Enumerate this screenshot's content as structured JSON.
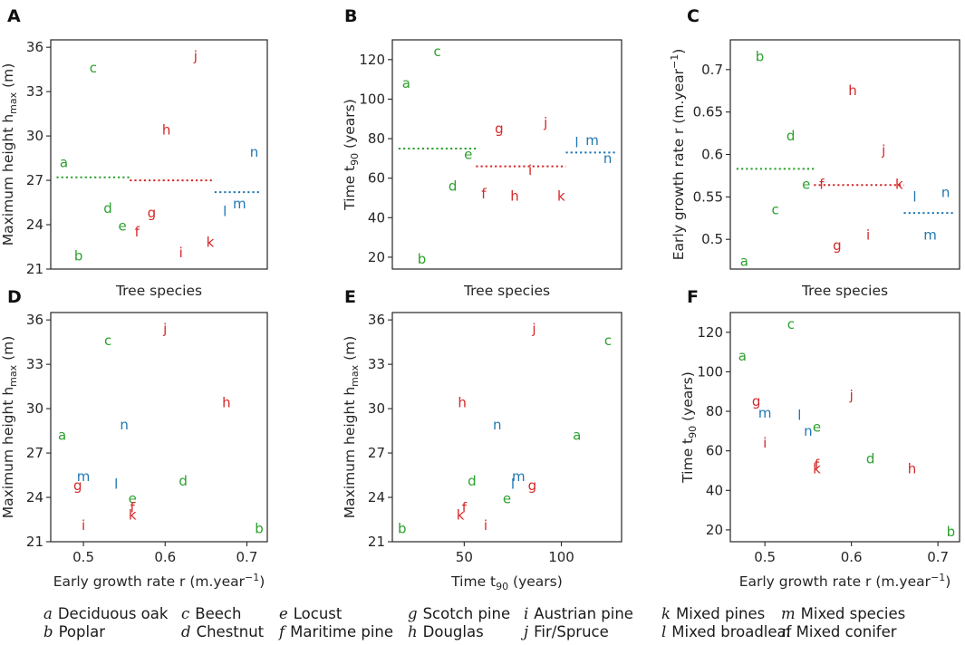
{
  "colors": {
    "green": "#2ca02c",
    "red": "#d62728",
    "blue": "#1f77b4",
    "axis": "#262626"
  },
  "group_colors": {
    "a": "green",
    "b": "green",
    "c": "green",
    "d": "green",
    "e": "green",
    "f": "red",
    "g": "red",
    "h": "red",
    "i": "red",
    "j": "red",
    "k": "red",
    "l": "blue",
    "m": "blue",
    "n": "blue"
  },
  "legend": [
    {
      "letter": "a",
      "name": "Deciduous oak"
    },
    {
      "letter": "b",
      "name": "Poplar"
    },
    {
      "letter": "c",
      "name": "Beech"
    },
    {
      "letter": "d",
      "name": "Chestnut"
    },
    {
      "letter": "e",
      "name": "Locust"
    },
    {
      "letter": "f",
      "name": "Maritime pine"
    },
    {
      "letter": "g",
      "name": "Scotch pine"
    },
    {
      "letter": "h",
      "name": "Douglas"
    },
    {
      "letter": "i",
      "name": "Austrian pine"
    },
    {
      "letter": "j",
      "name": "Fir/Spruce"
    },
    {
      "letter": "k",
      "name": "Mixed pines"
    },
    {
      "letter": "l",
      "name": "Mixed broadleaf"
    },
    {
      "letter": "m",
      "name": "Mixed species"
    },
    {
      "letter": "n",
      "name": "Mixed conifer"
    }
  ],
  "chart_data": [
    {
      "panel": "A",
      "type": "scatter",
      "xlabel": "Tree species",
      "ylabel": "Maximum height h_max (m)",
      "ylim": [
        21,
        36.5
      ],
      "yticks": [
        21,
        24,
        27,
        30,
        33,
        36
      ],
      "xticks": [],
      "points": [
        {
          "label": "a",
          "x": 1,
          "y": 28.2
        },
        {
          "label": "b",
          "x": 2,
          "y": 21.9
        },
        {
          "label": "c",
          "x": 3,
          "y": 34.6
        },
        {
          "label": "d",
          "x": 4,
          "y": 25.1
        },
        {
          "label": "e",
          "x": 5,
          "y": 23.9
        },
        {
          "label": "f",
          "x": 6,
          "y": 23.5
        },
        {
          "label": "g",
          "x": 7,
          "y": 24.8
        },
        {
          "label": "h",
          "x": 8,
          "y": 30.4
        },
        {
          "label": "i",
          "x": 9,
          "y": 22.1
        },
        {
          "label": "j",
          "x": 10,
          "y": 35.4
        },
        {
          "label": "k",
          "x": 11,
          "y": 22.8
        },
        {
          "label": "l",
          "x": 12,
          "y": 24.9
        },
        {
          "label": "m",
          "x": 13,
          "y": 25.4
        },
        {
          "label": "n",
          "x": 14,
          "y": 28.9
        }
      ],
      "group_means": [
        {
          "group": "green",
          "y": 27.2,
          "x_from": 0.5,
          "x_to": 5.5
        },
        {
          "group": "red",
          "y": 27.0,
          "x_from": 5.5,
          "x_to": 11.3
        },
        {
          "group": "blue",
          "y": 26.2,
          "x_from": 11.3,
          "x_to": 14.5
        }
      ]
    },
    {
      "panel": "B",
      "type": "scatter",
      "xlabel": "Tree species",
      "ylabel": "Time t90 (years)",
      "ylim": [
        14,
        130
      ],
      "yticks": [
        20,
        40,
        60,
        80,
        100,
        120
      ],
      "xticks": [],
      "points": [
        {
          "label": "a",
          "x": 1,
          "y": 108
        },
        {
          "label": "b",
          "x": 2,
          "y": 19
        },
        {
          "label": "c",
          "x": 3,
          "y": 124
        },
        {
          "label": "d",
          "x": 4,
          "y": 56
        },
        {
          "label": "e",
          "x": 5,
          "y": 72
        },
        {
          "label": "f",
          "x": 6,
          "y": 52
        },
        {
          "label": "g",
          "x": 7,
          "y": 85
        },
        {
          "label": "h",
          "x": 8,
          "y": 51
        },
        {
          "label": "i",
          "x": 9,
          "y": 64
        },
        {
          "label": "j",
          "x": 10,
          "y": 88
        },
        {
          "label": "k",
          "x": 11,
          "y": 51
        },
        {
          "label": "l",
          "x": 12,
          "y": 78
        },
        {
          "label": "m",
          "x": 13,
          "y": 79
        },
        {
          "label": "n",
          "x": 14,
          "y": 70
        }
      ],
      "group_means": [
        {
          "group": "green",
          "y": 75,
          "x_from": 0.5,
          "x_to": 5.5
        },
        {
          "group": "red",
          "y": 66,
          "x_from": 5.5,
          "x_to": 11.3
        },
        {
          "group": "blue",
          "y": 73,
          "x_from": 11.3,
          "x_to": 14.5
        }
      ]
    },
    {
      "panel": "C",
      "type": "scatter",
      "xlabel": "Tree species",
      "ylabel": "Early growth rate r (m.year^-1)",
      "ylim": [
        0.465,
        0.735
      ],
      "yticks": [
        0.5,
        0.55,
        0.6,
        0.65,
        0.7
      ],
      "xticks": [],
      "points": [
        {
          "label": "a",
          "x": 1,
          "y": 0.474
        },
        {
          "label": "b",
          "x": 2,
          "y": 0.715
        },
        {
          "label": "c",
          "x": 3,
          "y": 0.535
        },
        {
          "label": "d",
          "x": 4,
          "y": 0.622
        },
        {
          "label": "e",
          "x": 5,
          "y": 0.565
        },
        {
          "label": "f",
          "x": 6,
          "y": 0.565
        },
        {
          "label": "g",
          "x": 7,
          "y": 0.493
        },
        {
          "label": "h",
          "x": 8,
          "y": 0.675
        },
        {
          "label": "i",
          "x": 9,
          "y": 0.505
        },
        {
          "label": "j",
          "x": 10,
          "y": 0.605
        },
        {
          "label": "k",
          "x": 11,
          "y": 0.565
        },
        {
          "label": "l",
          "x": 12,
          "y": 0.55
        },
        {
          "label": "m",
          "x": 13,
          "y": 0.505
        },
        {
          "label": "n",
          "x": 14,
          "y": 0.555
        }
      ],
      "group_means": [
        {
          "group": "green",
          "y": 0.583,
          "x_from": 0.5,
          "x_to": 5.5
        },
        {
          "group": "red",
          "y": 0.564,
          "x_from": 5.5,
          "x_to": 11.3
        },
        {
          "group": "blue",
          "y": 0.531,
          "x_from": 11.3,
          "x_to": 14.5
        }
      ]
    },
    {
      "panel": "D",
      "type": "scatter",
      "xlabel": "Early growth rate r (m.year^-1)",
      "ylabel": "Maximum height h_max (m)",
      "xlim": [
        0.46,
        0.725
      ],
      "ylim": [
        21,
        36.5
      ],
      "xticks": [
        0.5,
        0.6,
        0.7
      ],
      "yticks": [
        21,
        24,
        27,
        30,
        33,
        36
      ],
      "points": [
        {
          "label": "a",
          "x": 0.474,
          "y": 28.2
        },
        {
          "label": "b",
          "x": 0.715,
          "y": 21.9
        },
        {
          "label": "c",
          "x": 0.53,
          "y": 34.6
        },
        {
          "label": "d",
          "x": 0.622,
          "y": 25.1
        },
        {
          "label": "e",
          "x": 0.56,
          "y": 23.9
        },
        {
          "label": "f",
          "x": 0.56,
          "y": 23.3
        },
        {
          "label": "g",
          "x": 0.493,
          "y": 24.8
        },
        {
          "label": "h",
          "x": 0.675,
          "y": 30.4
        },
        {
          "label": "i",
          "x": 0.5,
          "y": 22.1
        },
        {
          "label": "j",
          "x": 0.6,
          "y": 35.4
        },
        {
          "label": "k",
          "x": 0.56,
          "y": 22.8
        },
        {
          "label": "l",
          "x": 0.54,
          "y": 24.9
        },
        {
          "label": "m",
          "x": 0.5,
          "y": 25.4
        },
        {
          "label": "n",
          "x": 0.55,
          "y": 28.9
        }
      ]
    },
    {
      "panel": "E",
      "type": "scatter",
      "xlabel": "Time t90 (years)",
      "ylabel": "Maximum height h_max (m)",
      "xlim": [
        13,
        131
      ],
      "ylim": [
        21,
        36.5
      ],
      "xticks": [
        50,
        100
      ],
      "yticks": [
        21,
        24,
        27,
        30,
        33,
        36
      ],
      "points": [
        {
          "label": "a",
          "x": 108,
          "y": 28.2
        },
        {
          "label": "b",
          "x": 18,
          "y": 21.9
        },
        {
          "label": "c",
          "x": 124,
          "y": 34.6
        },
        {
          "label": "d",
          "x": 54,
          "y": 25.1
        },
        {
          "label": "e",
          "x": 72,
          "y": 23.9
        },
        {
          "label": "f",
          "x": 50,
          "y": 23.3
        },
        {
          "label": "g",
          "x": 85,
          "y": 24.8
        },
        {
          "label": "h",
          "x": 49,
          "y": 30.4
        },
        {
          "label": "i",
          "x": 61,
          "y": 22.1
        },
        {
          "label": "j",
          "x": 86,
          "y": 35.4
        },
        {
          "label": "k",
          "x": 48,
          "y": 22.8
        },
        {
          "label": "l",
          "x": 75,
          "y": 24.9
        },
        {
          "label": "m",
          "x": 78,
          "y": 25.4
        },
        {
          "label": "n",
          "x": 67,
          "y": 28.9
        }
      ]
    },
    {
      "panel": "F",
      "type": "scatter",
      "xlabel": "Early growth rate r (m.year^-1)",
      "ylabel": "Time t90 (years)",
      "xlim": [
        0.46,
        0.725
      ],
      "ylim": [
        14,
        130
      ],
      "xticks": [
        0.5,
        0.6,
        0.7
      ],
      "yticks": [
        20,
        40,
        60,
        80,
        100,
        120
      ],
      "points": [
        {
          "label": "a",
          "x": 0.474,
          "y": 108
        },
        {
          "label": "b",
          "x": 0.715,
          "y": 19
        },
        {
          "label": "c",
          "x": 0.53,
          "y": 124
        },
        {
          "label": "d",
          "x": 0.622,
          "y": 56
        },
        {
          "label": "e",
          "x": 0.56,
          "y": 72
        },
        {
          "label": "f",
          "x": 0.56,
          "y": 53
        },
        {
          "label": "g",
          "x": 0.49,
          "y": 85
        },
        {
          "label": "h",
          "x": 0.67,
          "y": 51
        },
        {
          "label": "i",
          "x": 0.5,
          "y": 64
        },
        {
          "label": "j",
          "x": 0.6,
          "y": 88
        },
        {
          "label": "k",
          "x": 0.56,
          "y": 51
        },
        {
          "label": "l",
          "x": 0.54,
          "y": 78
        },
        {
          "label": "m",
          "x": 0.5,
          "y": 79
        },
        {
          "label": "n",
          "x": 0.55,
          "y": 70
        }
      ]
    }
  ]
}
